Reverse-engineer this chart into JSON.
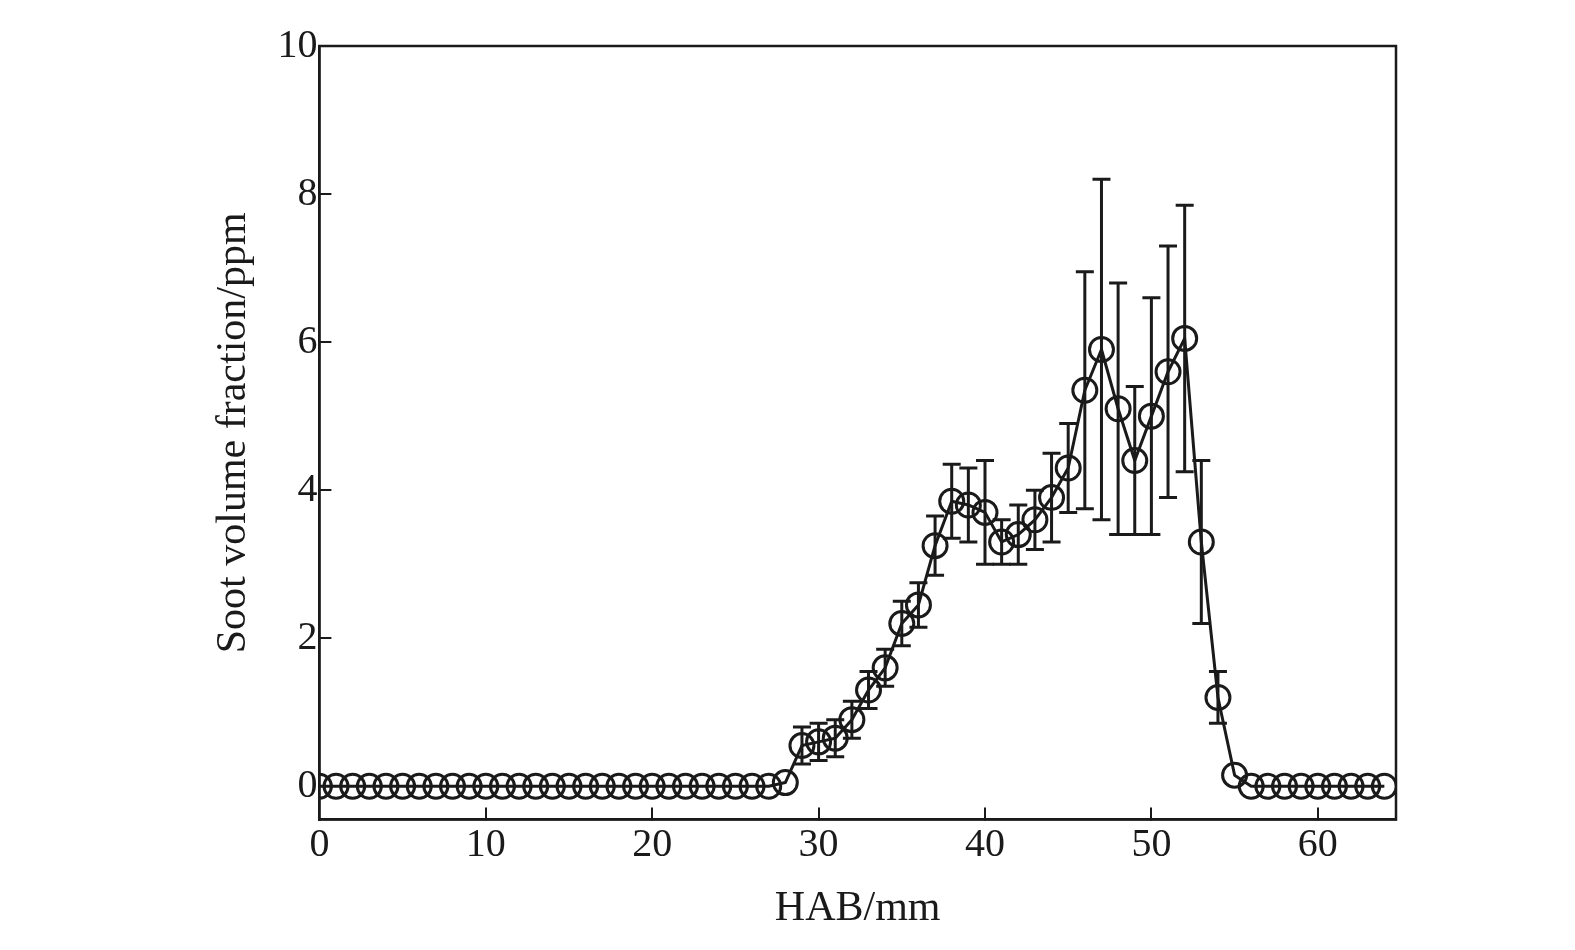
{
  "chart_data": {
    "type": "line",
    "xlabel": "HAB/mm",
    "ylabel": "Soot volume fraction/ppm",
    "x": [
      0,
      1,
      2,
      3,
      4,
      5,
      6,
      7,
      8,
      9,
      10,
      11,
      12,
      13,
      14,
      15,
      16,
      17,
      18,
      19,
      20,
      21,
      22,
      23,
      24,
      25,
      26,
      27,
      28,
      29,
      30,
      31,
      32,
      33,
      34,
      35,
      36,
      37,
      38,
      39,
      40,
      41,
      42,
      43,
      44,
      45,
      46,
      47,
      48,
      49,
      50,
      51,
      52,
      53,
      54,
      55,
      56,
      57,
      58,
      59,
      60,
      61,
      62,
      63,
      64
    ],
    "series": [
      {
        "color": "#1a1a1a",
        "values": [
          0,
          0,
          0,
          0,
          0,
          0,
          0,
          0,
          0,
          0,
          0,
          0,
          0,
          0,
          0,
          0,
          0,
          0,
          0,
          0,
          0,
          0,
          0,
          0,
          0,
          0,
          0,
          0,
          0.05,
          0.55,
          0.6,
          0.65,
          0.9,
          1.3,
          1.6,
          2.2,
          2.45,
          3.25,
          3.85,
          3.8,
          3.7,
          3.3,
          3.4,
          3.6,
          3.9,
          4.3,
          5.35,
          5.9,
          5.1,
          4.4,
          5.0,
          5.6,
          6.05,
          3.3,
          1.2,
          0.15,
          0,
          0,
          0,
          0,
          0,
          0,
          0,
          0,
          0
        ],
        "errors": [
          null,
          null,
          null,
          null,
          null,
          null,
          null,
          null,
          null,
          null,
          null,
          null,
          null,
          null,
          null,
          null,
          null,
          null,
          null,
          null,
          null,
          null,
          null,
          null,
          null,
          null,
          null,
          null,
          null,
          0.25,
          0.25,
          0.25,
          0.25,
          0.25,
          0.25,
          0.3,
          0.3,
          0.4,
          0.5,
          0.5,
          0.7,
          0.3,
          0.4,
          0.4,
          0.6,
          0.6,
          1.6,
          2.3,
          1.7,
          1.0,
          1.6,
          1.7,
          1.8,
          1.1,
          0.35,
          null,
          null,
          null,
          null,
          null,
          null,
          null,
          null,
          null,
          null
        ]
      }
    ],
    "xlim": [
      0,
      64.7
    ],
    "ylim": [
      -0.45,
      10
    ],
    "xticks": [
      0,
      10,
      20,
      30,
      40,
      50,
      60
    ],
    "yticks": [
      0,
      2,
      4,
      6,
      8,
      10
    ],
    "grid": false,
    "legend": false,
    "marker": "circle",
    "line_style": "solid"
  }
}
